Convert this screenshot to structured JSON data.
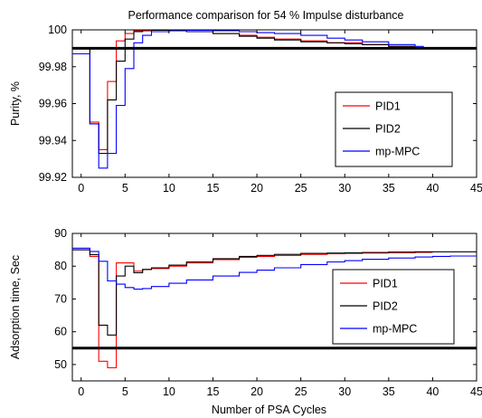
{
  "figure": {
    "title": "Performance comparison for 54 % Impulse disturbance"
  },
  "chart_data": [
    {
      "type": "line",
      "id": "purity",
      "title": "Performance comparison for 54 % Impulse disturbance",
      "xlabel": "",
      "ylabel": "Purity, %",
      "xlim": [
        -1,
        45
      ],
      "ylim": [
        99.92,
        100
      ],
      "xticks": [
        0,
        5,
        10,
        15,
        20,
        25,
        30,
        35,
        40,
        45
      ],
      "yticks": [
        99.92,
        99.94,
        99.96,
        99.98,
        100
      ],
      "ytick_labels": [
        "99.92",
        "99.94",
        "99.96",
        "99.98",
        "100"
      ],
      "grid": false,
      "legend_position": "center-right",
      "step": true,
      "reference_line": 99.99,
      "series": [
        {
          "name": "PID1",
          "color": "#ff0000",
          "x": [
            -1,
            0,
            1,
            2,
            3,
            4,
            5,
            6,
            7,
            8,
            10,
            12,
            15,
            18,
            20,
            22,
            25,
            28,
            30,
            32,
            35,
            38
          ],
          "y": [
            99.99,
            99.99,
            99.95,
            99.935,
            99.972,
            99.994,
            99.998,
            99.9995,
            99.9998,
            99.9998,
            99.9995,
            99.999,
            99.998,
            99.997,
            99.996,
            99.995,
            99.994,
            99.993,
            99.993,
            99.992,
            99.991,
            99.991
          ]
        },
        {
          "name": "PID2",
          "color": "#000000",
          "x": [
            -1,
            0,
            1,
            2,
            3,
            4,
            5,
            6,
            7,
            8,
            10,
            12,
            15,
            18,
            20,
            22,
            25,
            28,
            30,
            32,
            35,
            38
          ],
          "y": [
            99.99,
            99.99,
            99.949,
            99.933,
            99.962,
            99.983,
            99.995,
            99.999,
            99.9995,
            99.9998,
            99.9995,
            99.999,
            99.998,
            99.9965,
            99.9955,
            99.9945,
            99.9935,
            99.993,
            99.9925,
            99.992,
            99.991,
            99.991
          ]
        },
        {
          "name": "mp-MPC",
          "color": "#0000ff",
          "x": [
            -1,
            0,
            1,
            2,
            3,
            4,
            5,
            6,
            7,
            8,
            10,
            12,
            15,
            18,
            20,
            22,
            25,
            28,
            30,
            32,
            35,
            38,
            39
          ],
          "y": [
            99.987,
            99.987,
            99.949,
            99.925,
            99.933,
            99.959,
            99.979,
            99.993,
            99.997,
            99.999,
            100.0,
            99.9998,
            99.9995,
            99.999,
            99.9985,
            99.998,
            99.997,
            99.9955,
            99.9945,
            99.9935,
            99.992,
            99.991,
            99.991
          ]
        }
      ]
    },
    {
      "type": "line",
      "id": "adsorption",
      "title": "",
      "xlabel": "Number of PSA Cycles",
      "ylabel": "Adsorption time, Sec",
      "xlim": [
        -1,
        45
      ],
      "ylim": [
        45,
        90
      ],
      "xticks": [
        0,
        5,
        10,
        15,
        20,
        25,
        30,
        35,
        40,
        45
      ],
      "yticks": [
        50,
        60,
        70,
        80,
        90
      ],
      "ytick_labels": [
        "50",
        "60",
        "70",
        "80",
        "90"
      ],
      "grid": false,
      "legend_position": "center-right",
      "step": true,
      "reference_line": 55,
      "series": [
        {
          "name": "PID1",
          "color": "#ff0000",
          "x": [
            -1,
            0,
            1,
            2,
            3,
            4,
            5,
            6,
            7,
            8,
            10,
            12,
            15,
            18,
            20,
            22,
            25,
            28,
            30,
            32,
            35,
            38,
            40
          ],
          "y": [
            85,
            85,
            83,
            51,
            49,
            81,
            81,
            78.5,
            79,
            79.3,
            80,
            81,
            82,
            82.7,
            83,
            83.3,
            83.6,
            83.8,
            83.9,
            84,
            84.1,
            84.2,
            84.2
          ]
        },
        {
          "name": "PID2",
          "color": "#000000",
          "x": [
            -1,
            0,
            1,
            2,
            3,
            4,
            5,
            6,
            7,
            8,
            10,
            12,
            15,
            18,
            20,
            22,
            25,
            28,
            30,
            32,
            35,
            38,
            40,
            45
          ],
          "y": [
            85,
            85,
            83.5,
            62,
            59,
            77,
            80,
            78,
            79,
            79.5,
            80.3,
            81.3,
            82.3,
            83,
            83.3,
            83.6,
            83.9,
            84,
            84.1,
            84.2,
            84.3,
            84.4,
            84.4,
            84.4
          ]
        },
        {
          "name": "mp-MPC",
          "color": "#0000ff",
          "x": [
            -1,
            0,
            1,
            2,
            3,
            4,
            5,
            6,
            7,
            8,
            10,
            12,
            15,
            18,
            20,
            22,
            25,
            28,
            30,
            32,
            35,
            38,
            40,
            42,
            45
          ],
          "y": [
            85.5,
            85.5,
            84.5,
            81.5,
            75.5,
            74.5,
            73.5,
            73,
            73.2,
            73.8,
            74.8,
            75.8,
            77,
            78.1,
            78.8,
            79.5,
            80.5,
            81.3,
            81.7,
            82.1,
            82.5,
            82.8,
            83,
            83.1,
            83.2
          ]
        }
      ]
    }
  ]
}
